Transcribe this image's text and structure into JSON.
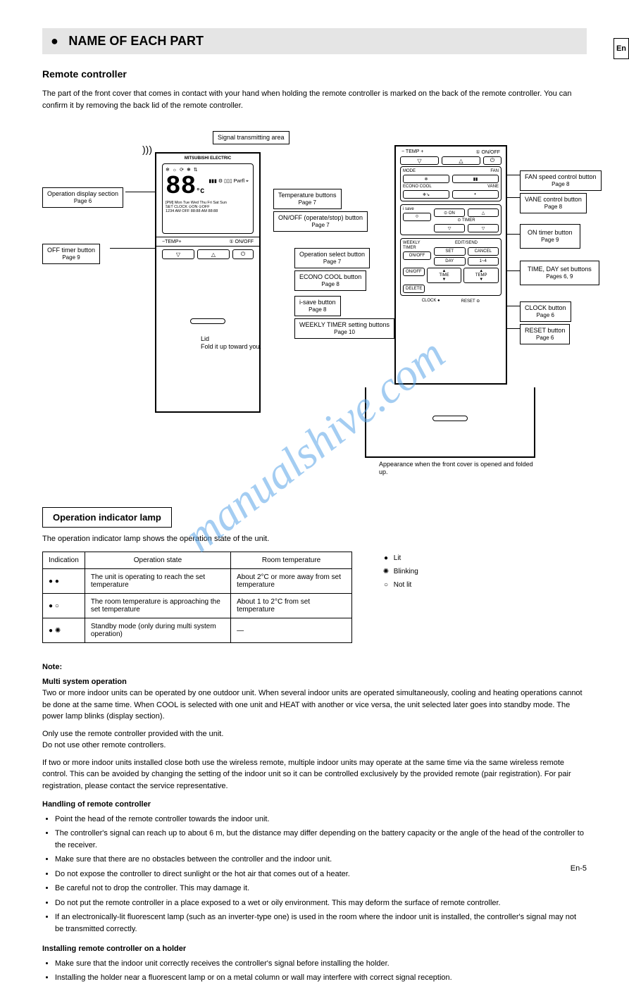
{
  "tab": "En",
  "page_number": "En-5",
  "watermark": "manualshive.com",
  "section": {
    "icon": "●",
    "title": "NAME OF EACH PART"
  },
  "remote": {
    "heading": "Remote controller",
    "intro": "The part of the front cover that comes in contact with your hand when holding the remote controller is marked on the back of the remote controller. You can confirm it by removing the back lid of the remote controller.",
    "brand": "MITSUBISHI ELECTRIC",
    "screen": {
      "mode_icons": "❄ ☼ ⟳ ❅ ⇅",
      "temp": "88",
      "unit": "°C",
      "fan_icons": "▮▮▮ ⚙\n▯▯▯\nPwrfl ⌖",
      "days_row": "[PM] Mon Tue Wed Thu Fri Sat Sun",
      "timer_row1": "SET CLOCK ⊙ON  ⊙OFF",
      "timer_row2": "1234 AM OFF 88:88 AM 88:88"
    },
    "temp_bar": {
      "minus": "−",
      "label": "TEMP",
      "plus": "+",
      "onoff": "① ON/OFF"
    },
    "buttons": {
      "down": "▽",
      "up": "△",
      "onoff": "⏻"
    },
    "lid_label": "Lid",
    "fold_text": "Fold it up toward you.",
    "signal_label": "Signal transmitting area",
    "open_footer": "Appearance when the front cover is opened and folded up.",
    "callouts": {
      "opdisplay": {
        "title": "Operation display section",
        "page": "Page 6"
      },
      "offtimer": {
        "title": "OFF timer button",
        "page": "Page 9"
      },
      "temp": {
        "title": "Temperature buttons",
        "page": "Page 7"
      },
      "onoff": {
        "title": "ON/OFF (operate/stop) button",
        "page": "Page 7"
      },
      "fan": {
        "title": "FAN speed control button",
        "page": "Page 8"
      },
      "mode": {
        "title": "Operation select button",
        "page": "Page 7"
      },
      "econo": {
        "title": "ECONO COOL button",
        "page": "Page 8"
      },
      "isave": {
        "title": "i-save button",
        "page": "Page 8"
      },
      "weekly": {
        "title": "WEEKLY TIMER setting buttons",
        "page": "Page 10"
      },
      "vane": {
        "title": "VANE control button",
        "page": "Page 8"
      },
      "timeset": {
        "title": "TIME, DAY set buttons",
        "page": "Pages 6, 9"
      },
      "ontimer": {
        "title": "ON timer button",
        "page": "Page 9"
      },
      "clock": {
        "title": "CLOCK button",
        "page": "Page 6"
      },
      "reset": {
        "title": "RESET button",
        "page": "Page 6"
      }
    },
    "open": {
      "top": {
        "temp_minus": "−",
        "temp_lbl": "TEMP",
        "temp_plus": "+",
        "onoff": "① ON/OFF"
      },
      "mode_fan": {
        "mode_lbl": "MODE",
        "fan_lbl": "FAN",
        "mode_icon": "❄",
        "fan_icon": "▮▮"
      },
      "econo_vane": {
        "econo_lbl": "ECONO COOL",
        "vane_lbl": "VANE",
        "econo_icon": "❄↘",
        "vane_icon": "◐"
      },
      "isave_lbl": "i save",
      "isave_btn": "⟐",
      "on_btn": "⊙ ON",
      "up_btn": "△",
      "timer_lbl": "⊙ TIMER",
      "down_btn": "▽",
      "down2": "▽",
      "weekly": {
        "title1": "WEEKLY",
        "title2": "TIMER",
        "onoff": "ON/OFF",
        "editsend": "EDIT/SEND",
        "set": "SET",
        "cancel": "CANCEL",
        "day": "DAY",
        "prog": "1~4",
        "onoff2": "ON/OFF",
        "time": "TIME",
        "temp": "TEMP",
        "delete": "DELETE"
      },
      "clock": "CLOCK",
      "reset": "RESET"
    }
  },
  "indicator": {
    "box_title": "Operation indicator lamp",
    "desc": "The operation indicator lamp shows the operation state of the unit.",
    "table": {
      "headers": [
        "Indication",
        "Operation state",
        "Room temperature"
      ],
      "rows": [
        {
          "lamp": [
            "lit",
            "lit"
          ],
          "state": "The unit is operating to reach the set temperature",
          "room": "About 2°C or more away from set temperature"
        },
        {
          "lamp": [
            "lit",
            "off"
          ],
          "state": "The room temperature is approaching the set temperature",
          "room": "About 1 to 2°C from set temperature"
        },
        {
          "lamp": [
            "lit",
            "blink"
          ],
          "state": "Standby mode (only during multi system operation)",
          "room": "—"
        }
      ]
    },
    "legend": [
      {
        "sym": "lit",
        "text": "Lit"
      },
      {
        "sym": "blink",
        "text": "Blinking"
      },
      {
        "sym": "off",
        "text": "Not lit"
      }
    ]
  },
  "notes": {
    "heading": "Note:",
    "multi": {
      "title": "Multi system operation",
      "body": "Two or more indoor units can be operated by one outdoor unit. When several indoor units are operated simultaneously, cooling and heating operations cannot be done at the same time. When COOL is selected with one unit and HEAT with another or vice versa, the unit selected later goes into standby mode. The power lamp blinks (display section)."
    },
    "only": "Only use the remote controller provided with the unit.\nDo not use other remote controllers.",
    "pair": "If two or more indoor units installed close both use the wireless remote, multiple indoor units may operate at the same time via the same wireless remote control.\nThis can be avoided by changing the setting of the indoor unit so it can be controlled exclusively by the provided remote (pair registration). For pair registration, please contact the service representative.",
    "handling": {
      "title": "Handling of remote controller",
      "items": [
        "Point the head of the remote controller towards the indoor unit.",
        "The controller's signal can reach up to about 6 m, but the distance may differ depending on the battery capacity or the angle of the head of the controller to the receiver.",
        "Make sure that there are no obstacles between the controller and the indoor unit.",
        "Do not expose the controller to direct sunlight or the hot air that comes out of a heater.",
        "Be careful not to drop the controller. This may damage it.",
        "Do not put the remote controller in a place exposed to a wet or oily environment. This may deform the surface of remote controller.",
        "If an electronically-lit fluorescent lamp (such as an inverter-type one) is used in the room where the indoor unit is installed, the controller's signal may not be transmitted correctly."
      ]
    },
    "holder": {
      "title": "Installing remote controller on a holder",
      "items": [
        "Make sure that the indoor unit correctly receives the controller's signal before installing the holder.",
        "Installing the holder near a fluorescent lamp or on a metal column or wall may interfere with correct signal reception."
      ]
    }
  },
  "colors": {
    "watermark": "#5aa6e8",
    "section_bg": "#e5e5e5"
  }
}
